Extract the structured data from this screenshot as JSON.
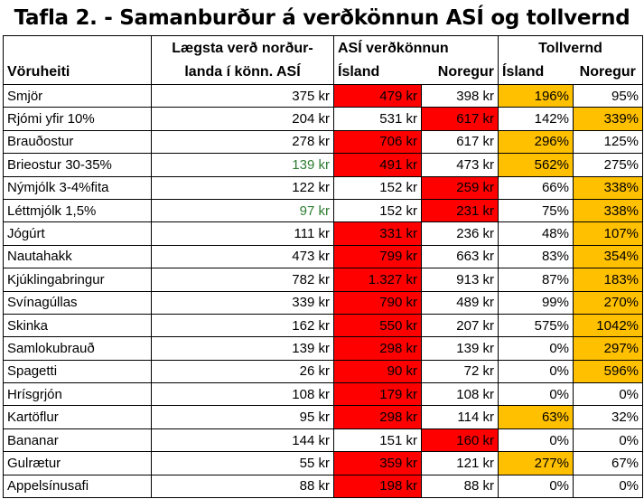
{
  "title": "Tafla 2. - Samanburður á verðkönnun ASÍ og tollvernd",
  "header": {
    "product": "Vöruheiti",
    "lowest_line1": "Lægsta verð norður-",
    "lowest_line2": "landa í könn. ASÍ",
    "asi_group": "ASÍ verðkönnun",
    "asi_iceland": "Ísland",
    "asi_norway": "Noregur",
    "toll_group": "Tollvernd",
    "toll_iceland": "Ísland",
    "toll_norway": "Noregur"
  },
  "colors": {
    "red": "#ff0000",
    "orange": "#ffc000",
    "green_text": "#2e7d32"
  },
  "rows": [
    {
      "name": "Smjör",
      "lowest": "375 kr",
      "is": "479 kr",
      "no": "398 kr",
      "tis": "196%",
      "tno": "95%",
      "hl": [
        "is",
        "tis"
      ]
    },
    {
      "name": "Rjómi yfir 10%",
      "lowest": "204 kr",
      "is": "531 kr",
      "no": "617 kr",
      "tis": "142%",
      "tno": "339%",
      "hl": [
        "no",
        "tno"
      ]
    },
    {
      "name": "Brauðostur",
      "lowest": "278 kr",
      "is": "706 kr",
      "no": "617 kr",
      "tis": "296%",
      "tno": "125%",
      "hl": [
        "is",
        "tis"
      ]
    },
    {
      "name": "Brieostur 30-35%",
      "lowest": "139 kr",
      "is": "491 kr",
      "no": "473 kr",
      "tis": "562%",
      "tno": "275%",
      "hl": [
        "is",
        "tis"
      ],
      "lowest_green": true
    },
    {
      "name": "Nýmjólk 3-4%fita",
      "lowest": "122 kr",
      "is": "152 kr",
      "no": "259 kr",
      "tis": "66%",
      "tno": "338%",
      "hl": [
        "no",
        "tno"
      ]
    },
    {
      "name": "Léttmjólk 1,5%",
      "lowest": "97 kr",
      "is": "152 kr",
      "no": "231 kr",
      "tis": "75%",
      "tno": "338%",
      "hl": [
        "no",
        "tno"
      ],
      "lowest_green": true
    },
    {
      "name": "Jógúrt",
      "lowest": "111 kr",
      "is": "331 kr",
      "no": "236 kr",
      "tis": "48%",
      "tno": "107%",
      "hl": [
        "is",
        "tno"
      ]
    },
    {
      "name": "Nautahakk",
      "lowest": "473 kr",
      "is": "799 kr",
      "no": "663 kr",
      "tis": "83%",
      "tno": "354%",
      "hl": [
        "is",
        "tno"
      ]
    },
    {
      "name": "Kjúklingabringur",
      "lowest": "782 kr",
      "is": "1.327 kr",
      "no": "913 kr",
      "tis": "87%",
      "tno": "183%",
      "hl": [
        "is",
        "tno"
      ]
    },
    {
      "name": "Svínagúllas",
      "lowest": "339 kr",
      "is": "790 kr",
      "no": "489 kr",
      "tis": "99%",
      "tno": "270%",
      "hl": [
        "is",
        "tno"
      ]
    },
    {
      "name": "Skinka",
      "lowest": "162 kr",
      "is": "550 kr",
      "no": "207 kr",
      "tis": "575%",
      "tno": "1042%",
      "hl": [
        "is",
        "tno"
      ]
    },
    {
      "name": "Samlokubrauð",
      "lowest": "139 kr",
      "is": "298 kr",
      "no": "139 kr",
      "tis": "0%",
      "tno": "297%",
      "hl": [
        "is",
        "tno"
      ]
    },
    {
      "name": "Spagetti",
      "lowest": "26 kr",
      "is": "90 kr",
      "no": "72 kr",
      "tis": "0%",
      "tno": "596%",
      "hl": [
        "is",
        "tno"
      ]
    },
    {
      "name": "Hrísgrjón",
      "lowest": "108 kr",
      "is": "179 kr",
      "no": "108 kr",
      "tis": "0%",
      "tno": "0%",
      "hl": [
        "is"
      ]
    },
    {
      "name": "Kartöflur",
      "lowest": "95 kr",
      "is": "298 kr",
      "no": "114 kr",
      "tis": "63%",
      "tno": "32%",
      "hl": [
        "is",
        "tis"
      ]
    },
    {
      "name": "Bananar",
      "lowest": "144 kr",
      "is": "151 kr",
      "no": "160 kr",
      "tis": "0%",
      "tno": "0%",
      "hl": [
        "no"
      ]
    },
    {
      "name": "Gulrætur",
      "lowest": "55 kr",
      "is": "359 kr",
      "no": "121 kr",
      "tis": "277%",
      "tno": "67%",
      "hl": [
        "is",
        "tis"
      ]
    },
    {
      "name": "Appelsínusafi",
      "lowest": "88 kr",
      "is": "198 kr",
      "no": "88 kr",
      "tis": "0%",
      "tno": "0%",
      "hl": [
        "is"
      ]
    }
  ]
}
